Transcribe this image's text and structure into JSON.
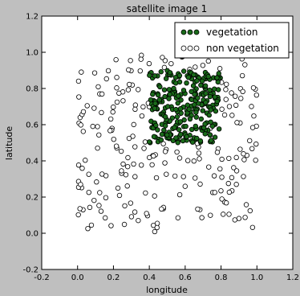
{
  "chart_data": {
    "type": "scatter",
    "title": "satellite image 1",
    "xlabel": "longitude",
    "ylabel": "latitude",
    "xlim": [
      -0.2,
      1.2
    ],
    "ylim": [
      -0.2,
      1.2
    ],
    "xticks": [
      "-0.2",
      "0.0",
      "0.2",
      "0.4",
      "0.6",
      "0.8",
      "1.0",
      "1.2"
    ],
    "yticks": [
      "-0.2",
      "0.0",
      "0.2",
      "0.4",
      "0.6",
      "0.8",
      "1.0",
      "1.2"
    ],
    "grid": false,
    "legend_position": "top-right",
    "series": [
      {
        "name": "vegetation",
        "color": "#1a6b1a",
        "edge": "#000000",
        "region": {
          "x": [
            0.4,
            0.8
          ],
          "y": [
            0.5,
            0.9
          ]
        },
        "count": 260
      },
      {
        "name": "non vegetation",
        "color": "#ffffff",
        "edge": "#000000",
        "region": {
          "x": [
            0.0,
            1.0
          ],
          "y": [
            0.0,
            1.0
          ]
        },
        "count": 230
      }
    ]
  },
  "colors": {
    "background": "#bfbfbf",
    "plot_area": "#ffffff",
    "vegetation": "#1a6b1a"
  }
}
